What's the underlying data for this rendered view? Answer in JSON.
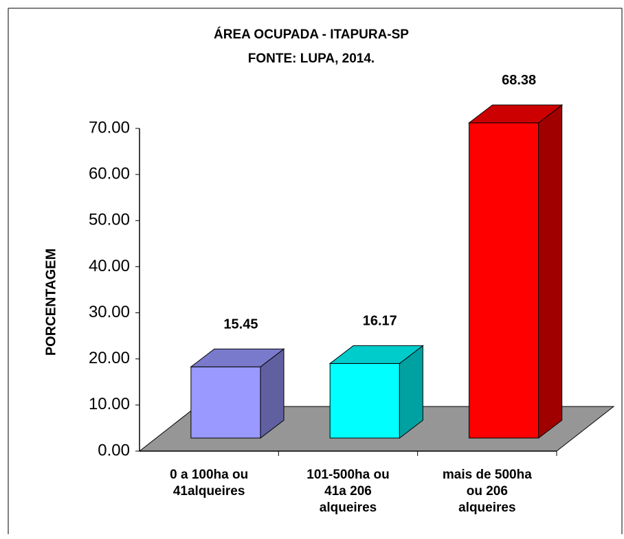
{
  "chart_data": {
    "type": "bar3d",
    "title": "ÁREA OCUPADA - ITAPURA-SP",
    "subtitle": "FONTE: LUPA, 2014.",
    "y_label": "PORCENTAGEM",
    "categories": [
      "0 a 100ha ou\n41alqueires",
      "101-500ha ou\n41a 206\nalqueires",
      "mais de 500ha\nou 206\nalqueires"
    ],
    "values": [
      15.45,
      16.17,
      68.38
    ],
    "colors": [
      "#9999ff",
      "#00ffff",
      "#ff0000"
    ],
    "ylim": [
      0,
      70
    ],
    "yticks": [
      {
        "value": 0,
        "label": "0.00"
      },
      {
        "value": 10,
        "label": "10.00"
      },
      {
        "value": 20,
        "label": "20.00"
      },
      {
        "value": 30,
        "label": "30.00"
      },
      {
        "value": 40,
        "label": "40.00"
      },
      {
        "value": 50,
        "label": "50.00"
      },
      {
        "value": 60,
        "label": "60.00"
      },
      {
        "value": 70,
        "label": "70.00"
      }
    ]
  }
}
